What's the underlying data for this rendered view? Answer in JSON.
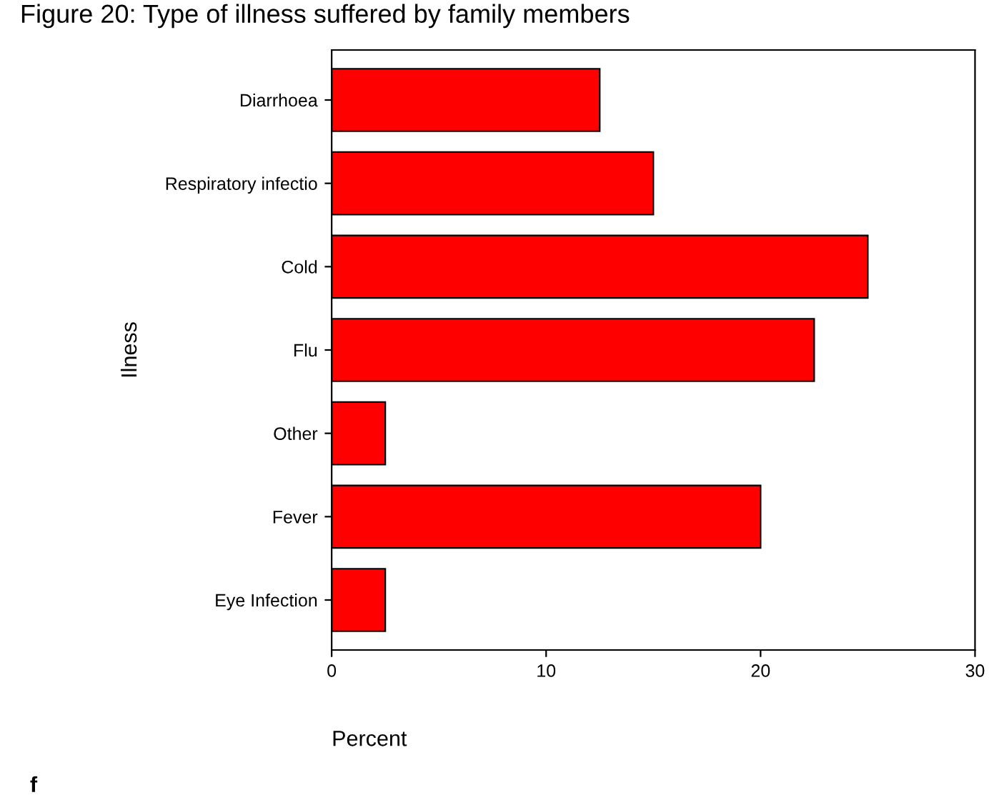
{
  "chart_data": {
    "type": "bar",
    "orientation": "horizontal",
    "title": "Figure 20: Type of illness suffered by family members",
    "categories": [
      "Diarrhoea",
      "Respiratory infectio",
      "Cold",
      "Flu",
      "Other",
      "Fever",
      "Eye Infection"
    ],
    "values": [
      12.5,
      15,
      25,
      22.5,
      2.5,
      20,
      2.5
    ],
    "color": "#ff0000",
    "xlim": [
      0,
      30
    ],
    "xticks": [
      0,
      10,
      20,
      30
    ],
    "xlabel": "Percent",
    "ylabel": "Ilness",
    "grid": false,
    "annotations": [
      "f"
    ]
  }
}
